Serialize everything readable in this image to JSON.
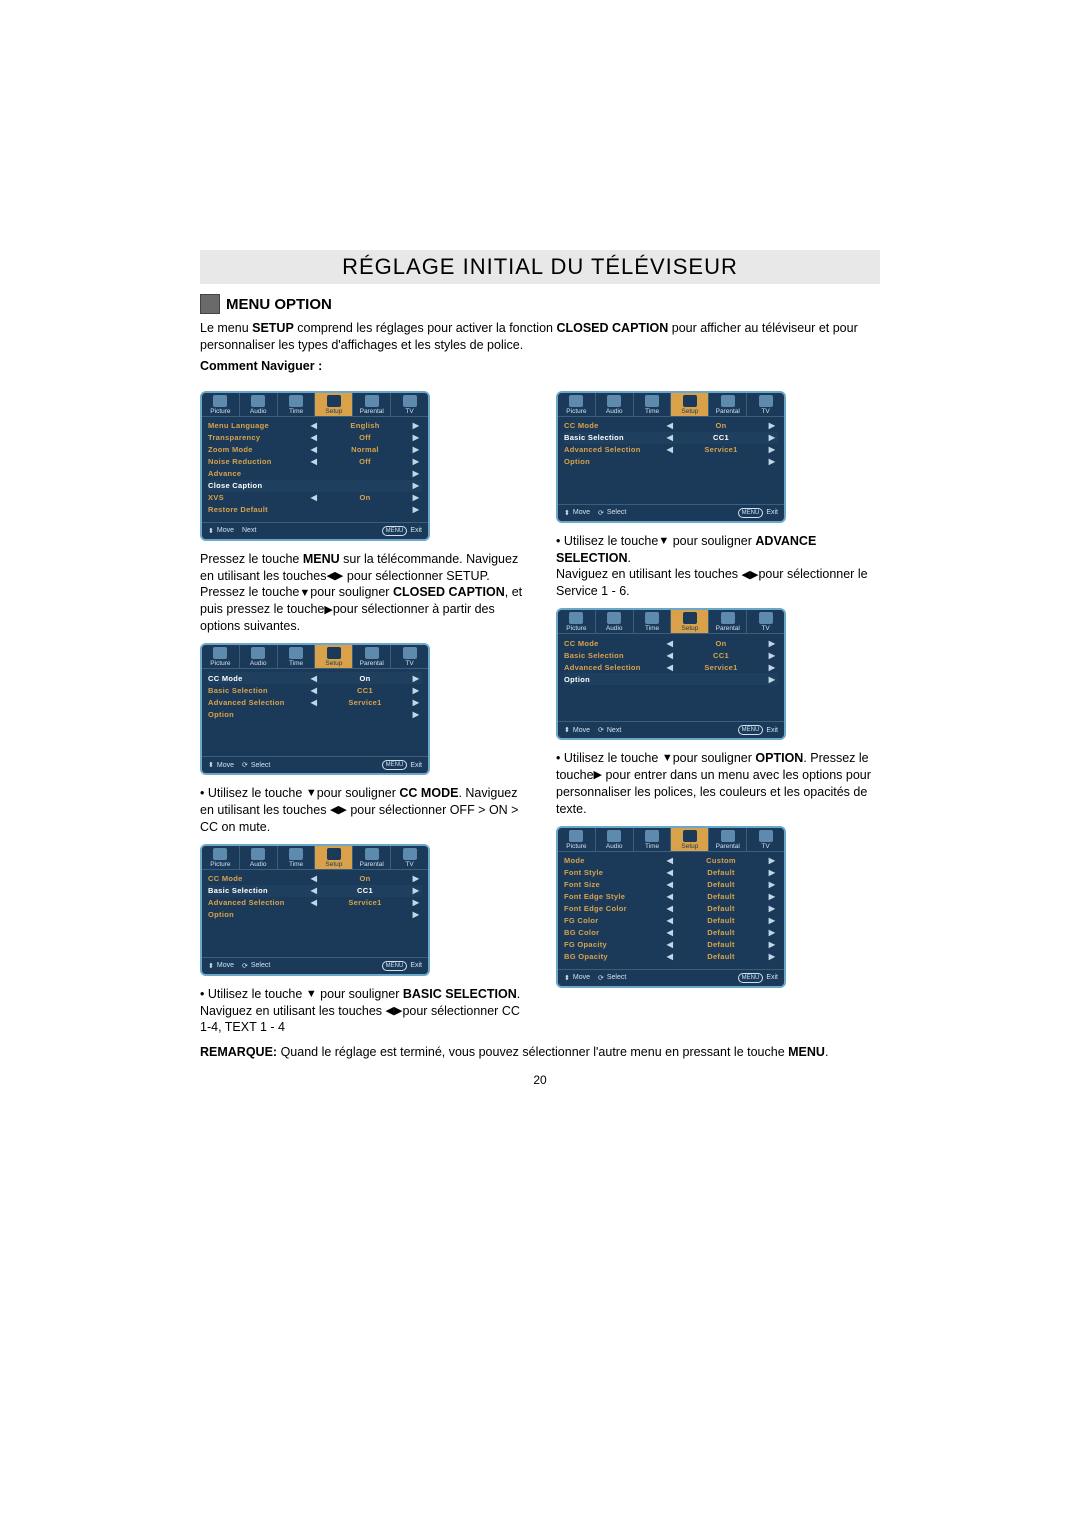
{
  "page": {
    "title": "RÉGLAGE INITIAL DU TÉLÉVISEUR",
    "section_title": "MENU OPTION",
    "intro_a": "Le menu ",
    "intro_b": "SETUP",
    "intro_c": " comprend les réglages pour activer la fonction ",
    "intro_d": "CLOSED CAPTION",
    "intro_e": " pour afficher au téléviseur et pour personnaliser les types d'affichages et les styles de police.",
    "howto": "Comment Naviguer :",
    "page_number": "20"
  },
  "icons": {
    "down": "▼",
    "left": "◀",
    "right": "▶",
    "leftright": "◀▶",
    "updown": "⬍"
  },
  "osd_tabs": [
    {
      "label": "Picture"
    },
    {
      "label": "Audio"
    },
    {
      "label": "Time"
    },
    {
      "label": "Setup",
      "active": true
    },
    {
      "label": "Parental"
    },
    {
      "label": "TV"
    }
  ],
  "menu1": {
    "rows": [
      {
        "label": "Menu Language",
        "val": "English",
        "arrows": true,
        "cls": ""
      },
      {
        "label": "Transparency",
        "val": "Off",
        "arrows": true,
        "cls": ""
      },
      {
        "label": "Zoom Mode",
        "val": "Normal",
        "arrows": true,
        "cls": ""
      },
      {
        "label": "Noise Reduction",
        "val": "Off",
        "arrows": true,
        "cls": ""
      },
      {
        "label": "Advance",
        "val": "",
        "right_only": true,
        "cls": ""
      },
      {
        "label": "Close Caption",
        "val": "",
        "right_only": true,
        "cls": "white"
      },
      {
        "label": "XVS",
        "val": "On",
        "arrows": true,
        "cls": ""
      },
      {
        "label": "Restore Default",
        "val": "",
        "right_only": true,
        "cls": ""
      }
    ],
    "hints": [
      {
        "icon": "⬍",
        "text": "Move"
      },
      {
        "icon": "",
        "text": "Next"
      },
      {
        "pill": "MENU",
        "text": "Exit",
        "right": true
      }
    ]
  },
  "menu_cc": {
    "rows": [
      {
        "label": "CC Mode",
        "val": "On",
        "arrows": true,
        "cls": ""
      },
      {
        "label": "Basic Selection",
        "val": "CC1",
        "arrows": true,
        "cls": ""
      },
      {
        "label": "Advanced Selection",
        "val": "Service1",
        "arrows": true,
        "cls": ""
      },
      {
        "label": "Option",
        "val": "",
        "right_only": true,
        "cls": ""
      }
    ]
  },
  "menu_cc_ccmode_hl": {
    "rows": [
      {
        "label": "CC Mode",
        "val": "On",
        "arrows": true,
        "cls": "white"
      },
      {
        "label": "Basic Selection",
        "val": "CC1",
        "arrows": true,
        "cls": ""
      },
      {
        "label": "Advanced Selection",
        "val": "Service1",
        "arrows": true,
        "cls": ""
      },
      {
        "label": "Option",
        "val": "",
        "right_only": true,
        "cls": ""
      }
    ]
  },
  "menu_cc_basic_hl": {
    "rows": [
      {
        "label": "CC Mode",
        "val": "On",
        "arrows": true,
        "cls": ""
      },
      {
        "label": "Basic Selection",
        "val": "CC1",
        "arrows": true,
        "cls": "white"
      },
      {
        "label": "Advanced Selection",
        "val": "Service1",
        "arrows": true,
        "cls": ""
      },
      {
        "label": "Option",
        "val": "",
        "right_only": true,
        "cls": ""
      }
    ]
  },
  "menu_cc_adv_hl": {
    "rows": [
      {
        "label": "CC Mode",
        "val": "On",
        "arrows": true,
        "cls": ""
      },
      {
        "label": "Basic Selection",
        "val": "CC1",
        "arrows": true,
        "cls": "white"
      },
      {
        "label": "Advanced Selection",
        "val": "Service1",
        "arrows": true,
        "cls": ""
      },
      {
        "label": "Option",
        "val": "",
        "right_only": true,
        "cls": ""
      }
    ]
  },
  "menu_cc_option_hl": {
    "rows": [
      {
        "label": "CC Mode",
        "val": "On",
        "arrows": true,
        "cls": ""
      },
      {
        "label": "Basic Selection",
        "val": "CC1",
        "arrows": true,
        "cls": ""
      },
      {
        "label": "Advanced Selection",
        "val": "Service1",
        "arrows": true,
        "cls": ""
      },
      {
        "label": "Option",
        "val": "",
        "right_only": true,
        "cls": "white"
      }
    ]
  },
  "menu_font": {
    "rows": [
      {
        "label": "Mode",
        "val": "Custom",
        "arrows": true,
        "cls": ""
      },
      {
        "label": "Font Style",
        "val": "Default",
        "arrows": true,
        "cls": ""
      },
      {
        "label": "Font Size",
        "val": "Default",
        "arrows": true,
        "cls": ""
      },
      {
        "label": "Font Edge Style",
        "val": "Default",
        "arrows": true,
        "cls": ""
      },
      {
        "label": "Font Edge Color",
        "val": "Default",
        "arrows": true,
        "cls": ""
      },
      {
        "label": "FG Color",
        "val": "Default",
        "arrows": true,
        "cls": ""
      },
      {
        "label": "BG Color",
        "val": "Default",
        "arrows": true,
        "cls": ""
      },
      {
        "label": "FG Opacity",
        "val": "Default",
        "arrows": true,
        "cls": ""
      },
      {
        "label": "BG Opacity",
        "val": "Default",
        "arrows": true,
        "cls": ""
      }
    ]
  },
  "hints_select": [
    {
      "icon": "⬍",
      "text": "Move"
    },
    {
      "icon": "⟳",
      "text": "Select"
    },
    {
      "pill": "MENU",
      "text": "Exit",
      "right": true
    }
  ],
  "hints_next": [
    {
      "icon": "⬍",
      "text": "Move"
    },
    {
      "icon": "⟳",
      "text": "Next"
    },
    {
      "pill": "MENU",
      "text": "Exit",
      "right": true
    }
  ],
  "text": {
    "p1a": "Pressez le touche ",
    "p1b": "MENU",
    "p1c": " sur la télécommande. Naviguez en utilisant les touches",
    "p1d": " pour sélectionner SETUP.",
    "p2a": "Pressez le touche",
    "p2b": "pour souligner ",
    "p2c": "CLOSED CAPTION",
    "p2d": ", et puis pressez le touche",
    "p2e": "pour sélectionner à partir des options suivantes.",
    "p3a": "• Utilisez le touche ",
    "p3b": "pour souligner ",
    "p3c": "CC MODE",
    "p3d": ". Naviguez en utilisant les touches ",
    "p3e": " pour sélectionner OFF > ON > CC on mute.",
    "p4a": "• Utilisez le touche ",
    "p4b": " pour souligner ",
    "p4c": "BASIC SELECTION",
    "p4d": ".",
    "p4e": "Naviguez en utilisant les touches ",
    "p4f": "pour sélectionner CC 1-4, TEXT 1 - 4",
    "p5a": "• Utilisez le touche",
    "p5b": " pour souligner ",
    "p5c": "ADVANCE SELECTION",
    "p5d": ".",
    "p5e": "Naviguez en utilisant les touches ",
    "p5f": "pour sélectionner le Service 1 - 6.",
    "p6a": "• Utilisez le touche ",
    "p6b": "pour souligner ",
    "p6c": "OPTION",
    "p6d": ". Pressez le touche",
    "p6e": " pour entrer dans un menu avec les options pour personnaliser les polices, les couleurs et les opacités de texte.",
    "note_a": "REMARQUE:",
    "note_b": " Quand le réglage est terminé, vous pouvez sélectionner l'autre menu en pressant le touche ",
    "note_c": "MENU",
    "note_d": "."
  },
  "style": {
    "osd_bg": "#1b3a5a",
    "osd_border": "#6aa7c9",
    "osd_accent": "#d9a24a",
    "osd_row_hl": "#ffffff"
  }
}
